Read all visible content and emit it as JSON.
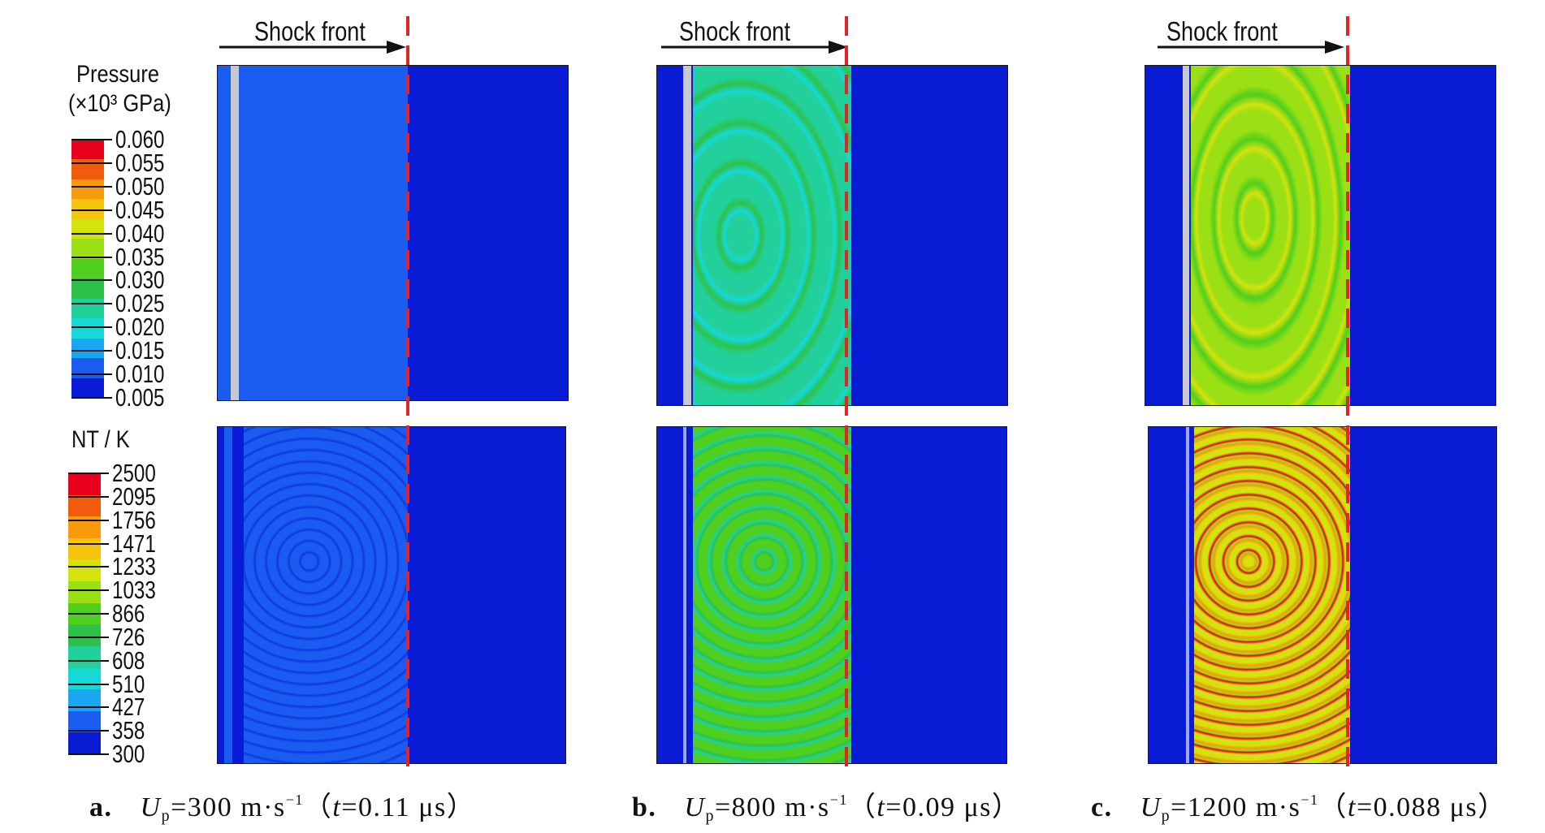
{
  "shock_label": "Shock front",
  "pressure_colorbar": {
    "title_line1": "Pressure",
    "title_line2": "(×10³ GPa)",
    "ticks": [
      "0.060",
      "0.055",
      "0.050",
      "0.045",
      "0.040",
      "0.035",
      "0.030",
      "0.025",
      "0.020",
      "0.015",
      "0.010",
      "0.005"
    ],
    "colors": [
      "#e8001c",
      "#f25a0c",
      "#f79a0b",
      "#f5c40c",
      "#d4e20e",
      "#9be014",
      "#4fcf1e",
      "#2cc24a",
      "#22d09c",
      "#16d8d6",
      "#1aa6f0",
      "#1a5cef",
      "#0a1bd6"
    ]
  },
  "temperature_colorbar": {
    "title": "NT / K",
    "ticks": [
      "2500",
      "2095",
      "1756",
      "1471",
      "1233",
      "1033",
      "866",
      "726",
      "608",
      "510",
      "427",
      "358",
      "300"
    ],
    "colors": [
      "#e8001c",
      "#f25a0c",
      "#f79a0b",
      "#f5c40c",
      "#d4e20e",
      "#9be014",
      "#4fcf1e",
      "#2cc24a",
      "#22d09c",
      "#16d8d6",
      "#1aa6f0",
      "#1a5cef",
      "#0a1bd6"
    ]
  },
  "panels": [
    {
      "id": "a",
      "caption": {
        "label": "a.",
        "symbol": "U",
        "sub": "p",
        "speed": "=300 m·s",
        "exp": "−1",
        "open": "（",
        "t": "t",
        "time": "=0.11  μs",
        "close": "）"
      }
    },
    {
      "id": "b",
      "caption": {
        "label": "b.",
        "symbol": "U",
        "sub": "p",
        "speed": "=800 m·s",
        "exp": "−1",
        "open": "（",
        "t": "t",
        "time": "=0.09  μs",
        "close": "）"
      }
    },
    {
      "id": "c",
      "caption": {
        "label": "c.",
        "symbol": "U",
        "sub": "p",
        "speed": "=1200 m·s",
        "exp": "−1",
        "open": "（",
        "t": "t",
        "time": "=0.088  μs",
        "close": "）"
      }
    }
  ],
  "colors": {
    "background": "#ffffff",
    "unshocked_blue": "#0a1bd6",
    "shock_line": "#e0242a",
    "piston_grey": "#c8c8d0"
  }
}
